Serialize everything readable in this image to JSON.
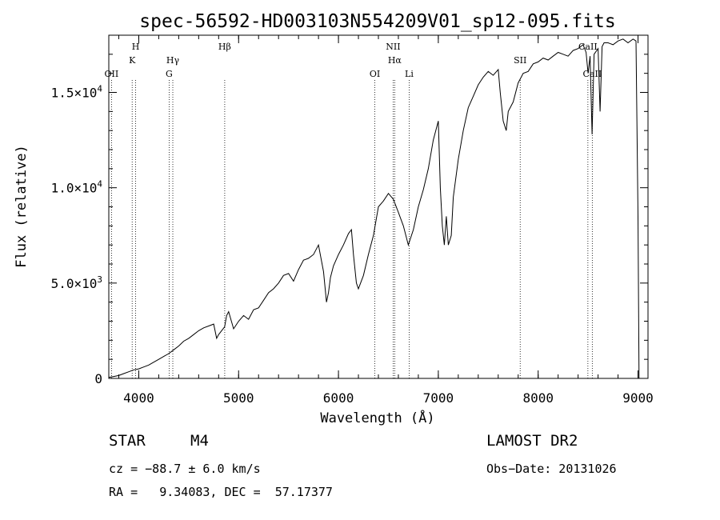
{
  "chart_data": {
    "type": "line",
    "title": "spec-56592-HD003103N554209V01_sp12-095.fits",
    "xlabel": "Wavelength (Å)",
    "ylabel": "Flux (relative)",
    "xlim": [
      3700,
      9100
    ],
    "ylim": [
      0,
      18000
    ],
    "x_ticks": [
      {
        "value": 4000,
        "label": "4000"
      },
      {
        "value": 5000,
        "label": "5000"
      },
      {
        "value": 6000,
        "label": "6000"
      },
      {
        "value": 7000,
        "label": "7000"
      },
      {
        "value": 8000,
        "label": "8000"
      },
      {
        "value": 9000,
        "label": "9000"
      }
    ],
    "y_ticks": [
      {
        "value": 0,
        "mant": "0",
        "exp": ""
      },
      {
        "value": 5000,
        "mant": "5.0×10",
        "exp": "3"
      },
      {
        "value": 10000,
        "mant": "1.0×10",
        "exp": "4"
      },
      {
        "value": 15000,
        "mant": "1.5×10",
        "exp": "4"
      }
    ],
    "lines": [
      {
        "w": 3727,
        "label": "OII",
        "row": 2
      },
      {
        "w": 3934,
        "label": "K",
        "row": 1
      },
      {
        "w": 3969,
        "label": "H",
        "row": 0
      },
      {
        "w": 4304,
        "label": "G",
        "row": 2
      },
      {
        "w": 4341,
        "label": "Hγ",
        "row": 1
      },
      {
        "w": 4861,
        "label": "Hβ",
        "row": 0
      },
      {
        "w": 6364,
        "label": "OI",
        "row": 2
      },
      {
        "w": 6548,
        "label": "NII",
        "row": 0
      },
      {
        "w": 6563,
        "label": "Hα",
        "row": 1
      },
      {
        "w": 6708,
        "label": "Li",
        "row": 2
      },
      {
        "w": 7820,
        "label": "SII",
        "row": 1
      },
      {
        "w": 8498,
        "label": "CaII",
        "row": 0
      },
      {
        "w": 8542,
        "label": "CaII",
        "row": 2
      }
    ],
    "series": [
      {
        "name": "flux",
        "x": [
          3700,
          3750,
          3800,
          3850,
          3900,
          3950,
          4000,
          4050,
          4100,
          4150,
          4200,
          4250,
          4300,
          4350,
          4400,
          4450,
          4500,
          4550,
          4600,
          4650,
          4700,
          4750,
          4780,
          4800,
          4830,
          4860,
          4880,
          4900,
          4950,
          5000,
          5050,
          5100,
          5150,
          5200,
          5250,
          5300,
          5350,
          5400,
          5450,
          5500,
          5550,
          5600,
          5650,
          5700,
          5750,
          5800,
          5850,
          5880,
          5900,
          5920,
          5950,
          6000,
          6050,
          6100,
          6130,
          6150,
          6180,
          6200,
          6250,
          6300,
          6350,
          6400,
          6450,
          6500,
          6550,
          6600,
          6650,
          6700,
          6750,
          6800,
          6850,
          6900,
          6950,
          7000,
          7020,
          7040,
          7060,
          7080,
          7100,
          7130,
          7150,
          7200,
          7250,
          7300,
          7350,
          7400,
          7450,
          7500,
          7550,
          7600,
          7620,
          7650,
          7680,
          7700,
          7750,
          7800,
          7850,
          7900,
          7950,
          8000,
          8050,
          8100,
          8150,
          8200,
          8250,
          8300,
          8350,
          8400,
          8450,
          8480,
          8500,
          8520,
          8540,
          8560,
          8600,
          8620,
          8640,
          8660,
          8700,
          8750,
          8800,
          8850,
          8900,
          8950,
          8980,
          9000,
          9010
        ],
        "y": [
          50,
          100,
          150,
          250,
          350,
          450,
          500,
          600,
          700,
          850,
          1000,
          1150,
          1300,
          1500,
          1700,
          1950,
          2100,
          2300,
          2500,
          2650,
          2750,
          2850,
          2100,
          2300,
          2500,
          2700,
          3300,
          3500,
          2600,
          3000,
          3300,
          3100,
          3600,
          3700,
          4100,
          4500,
          4700,
          5000,
          5400,
          5500,
          5100,
          5700,
          6200,
          6300,
          6500,
          7000,
          5600,
          4000,
          4500,
          5300,
          5900,
          6500,
          7000,
          7600,
          7800,
          6500,
          5000,
          4700,
          5400,
          6500,
          7500,
          9000,
          9300,
          9700,
          9400,
          8700,
          8000,
          7000,
          7800,
          9000,
          9900,
          11000,
          12500,
          13500,
          10000,
          8000,
          7000,
          8500,
          7000,
          7500,
          9500,
          11500,
          13000,
          14200,
          14800,
          15400,
          15800,
          16100,
          15900,
          16200,
          15000,
          13500,
          13000,
          14000,
          14500,
          15500,
          16000,
          16100,
          16500,
          16600,
          16800,
          16700,
          16900,
          17100,
          17000,
          16900,
          17200,
          17300,
          17500,
          17100,
          16000,
          16900,
          12800,
          17000,
          17300,
          14000,
          17400,
          17600,
          17600,
          17500,
          17700,
          17800,
          17600,
          17800,
          17700,
          8500,
          0
        ]
      }
    ]
  },
  "info": {
    "object_class": "STAR",
    "subclass": "M4",
    "survey": "LAMOST DR2",
    "cz": "cz = −88.7 ± 6.0 km/s",
    "obs_date": "Obs−Date: 20131026",
    "radec": "RA =   9.34083, DEC =  57.17377"
  }
}
